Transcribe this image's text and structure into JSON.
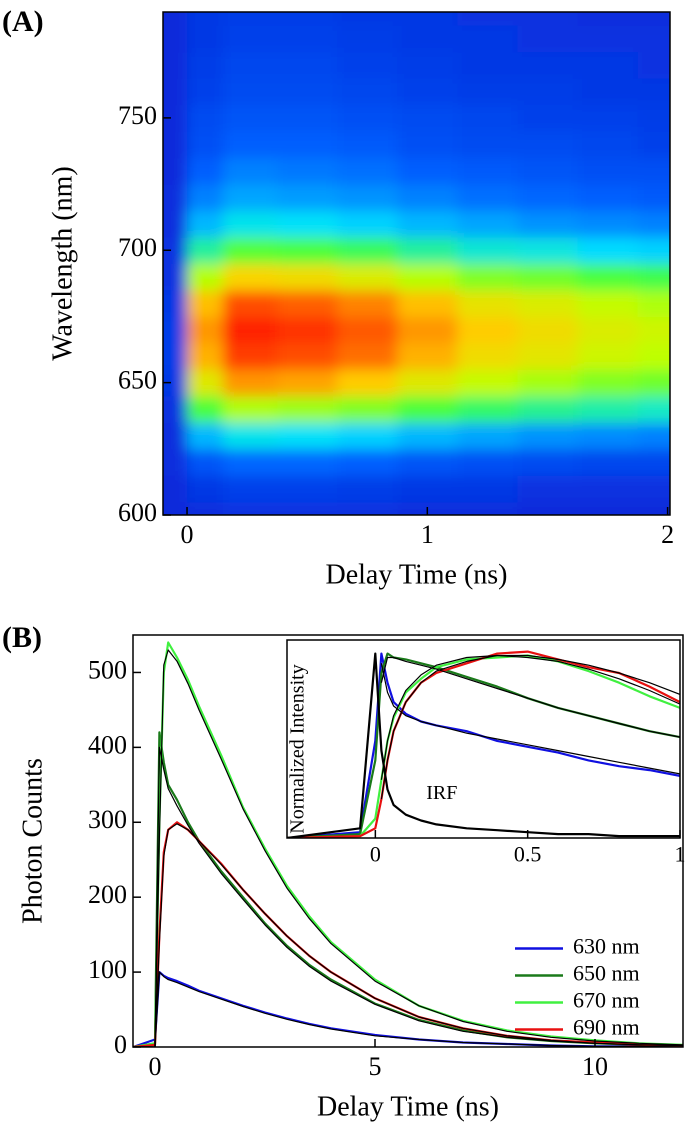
{
  "chart_data": [
    {
      "type": "heatmap",
      "panel_label": "(A)",
      "xlabel": "Delay Time (ns)",
      "ylabel": "Wavelength (nm)",
      "x": [
        -0.05,
        0.05,
        0.25,
        0.5,
        0.75,
        1.0,
        1.25,
        1.5,
        1.75,
        2.0
      ],
      "y": [
        600,
        610,
        620,
        630,
        640,
        650,
        660,
        670,
        680,
        690,
        700,
        710,
        720,
        730,
        740,
        750,
        760,
        770,
        780,
        790
      ],
      "values": [
        [
          0.03,
          0.04,
          0.05,
          0.05,
          0.05,
          0.04,
          0.04,
          0.03,
          0.03,
          0.03
        ],
        [
          0.03,
          0.06,
          0.08,
          0.08,
          0.07,
          0.06,
          0.06,
          0.05,
          0.05,
          0.05
        ],
        [
          0.04,
          0.12,
          0.15,
          0.15,
          0.14,
          0.12,
          0.11,
          0.1,
          0.09,
          0.09
        ],
        [
          0.04,
          0.24,
          0.3,
          0.29,
          0.27,
          0.24,
          0.22,
          0.2,
          0.19,
          0.18
        ],
        [
          0.05,
          0.44,
          0.55,
          0.53,
          0.5,
          0.44,
          0.4,
          0.37,
          0.35,
          0.33
        ],
        [
          0.06,
          0.64,
          0.8,
          0.78,
          0.72,
          0.64,
          0.58,
          0.54,
          0.5,
          0.48
        ],
        [
          0.07,
          0.76,
          0.95,
          0.92,
          0.86,
          0.76,
          0.68,
          0.65,
          0.6,
          0.57
        ],
        [
          0.07,
          0.8,
          1.0,
          0.97,
          0.9,
          0.8,
          0.72,
          0.68,
          0.63,
          0.6
        ],
        [
          0.06,
          0.74,
          0.92,
          0.89,
          0.83,
          0.74,
          0.66,
          0.63,
          0.58,
          0.55
        ],
        [
          0.05,
          0.56,
          0.7,
          0.68,
          0.63,
          0.56,
          0.5,
          0.48,
          0.44,
          0.42
        ],
        [
          0.05,
          0.36,
          0.45,
          0.44,
          0.41,
          0.36,
          0.32,
          0.31,
          0.28,
          0.27
        ],
        [
          0.04,
          0.24,
          0.3,
          0.29,
          0.27,
          0.24,
          0.22,
          0.2,
          0.19,
          0.18
        ],
        [
          0.04,
          0.18,
          0.22,
          0.21,
          0.2,
          0.18,
          0.16,
          0.15,
          0.14,
          0.13
        ],
        [
          0.03,
          0.14,
          0.18,
          0.17,
          0.16,
          0.14,
          0.13,
          0.12,
          0.11,
          0.11
        ],
        [
          0.03,
          0.11,
          0.14,
          0.14,
          0.13,
          0.11,
          0.1,
          0.1,
          0.09,
          0.08
        ],
        [
          0.03,
          0.1,
          0.12,
          0.12,
          0.11,
          0.1,
          0.09,
          0.08,
          0.08,
          0.07
        ],
        [
          0.03,
          0.08,
          0.1,
          0.1,
          0.09,
          0.08,
          0.07,
          0.07,
          0.06,
          0.06
        ],
        [
          0.03,
          0.07,
          0.09,
          0.09,
          0.08,
          0.07,
          0.06,
          0.06,
          0.06,
          0.05
        ],
        [
          0.03,
          0.06,
          0.08,
          0.08,
          0.07,
          0.06,
          0.06,
          0.05,
          0.05,
          0.05
        ],
        [
          0.03,
          0.06,
          0.07,
          0.07,
          0.06,
          0.06,
          0.05,
          0.05,
          0.04,
          0.04
        ]
      ],
      "colorscale": [
        "#0a1ad0",
        "#0060ff",
        "#00e0ff",
        "#40ff40",
        "#c0ff00",
        "#ffd000",
        "#ff7000",
        "#ff2000"
      ],
      "xlim": [
        -0.1,
        2.01
      ],
      "ylim": [
        600,
        790
      ],
      "xticks": [
        0,
        1,
        2
      ],
      "yticks": [
        600,
        650,
        700,
        750
      ]
    },
    {
      "type": "line",
      "panel_label": "(B)",
      "xlabel": "Delay Time (ns)",
      "ylabel": "Photon Counts",
      "x": [
        -0.5,
        0,
        0.1,
        0.2,
        0.3,
        0.5,
        0.75,
        1,
        1.5,
        2,
        2.5,
        3,
        3.5,
        4,
        5,
        6,
        7,
        8,
        9,
        10,
        11,
        12
      ],
      "series": [
        {
          "name": "630 nm",
          "color": "#1010e0",
          "values": [
            0,
            10,
            100,
            95,
            92,
            88,
            82,
            75,
            65,
            55,
            46,
            38,
            31,
            25,
            16,
            10,
            6,
            4,
            2,
            1,
            1,
            0
          ]
        },
        {
          "name": "650 nm",
          "color": "#1a7a1a",
          "values": [
            0,
            5,
            420,
            380,
            350,
            330,
            300,
            275,
            235,
            200,
            165,
            135,
            110,
            90,
            58,
            36,
            22,
            13,
            8,
            5,
            3,
            2
          ]
        },
        {
          "name": "670 nm",
          "color": "#40f040",
          "values": [
            0,
            5,
            300,
            500,
            540,
            520,
            490,
            455,
            390,
            320,
            265,
            215,
            175,
            140,
            90,
            55,
            35,
            22,
            14,
            9,
            5,
            3
          ]
        },
        {
          "name": "690 nm",
          "color": "#e81010",
          "values": [
            0,
            3,
            150,
            260,
            290,
            300,
            290,
            275,
            245,
            210,
            178,
            148,
            122,
            100,
            65,
            40,
            25,
            15,
            9,
            6,
            3,
            2
          ]
        }
      ],
      "fits": [
        {
          "color": "#000000",
          "values": [
            0,
            0,
            100,
            94,
            90,
            86,
            80,
            74,
            64,
            54,
            45,
            37,
            30,
            24,
            15,
            10,
            6,
            4,
            2,
            1,
            1,
            0
          ]
        },
        {
          "color": "#000000",
          "values": [
            0,
            0,
            400,
            370,
            345,
            322,
            296,
            272,
            232,
            197,
            163,
            133,
            108,
            88,
            57,
            35,
            21,
            13,
            8,
            5,
            3,
            2
          ]
        },
        {
          "color": "#000000",
          "values": [
            0,
            0,
            280,
            510,
            530,
            515,
            485,
            450,
            385,
            318,
            262,
            212,
            172,
            138,
            88,
            55,
            34,
            21,
            13,
            8,
            5,
            3
          ]
        },
        {
          "color": "#000000",
          "values": [
            0,
            0,
            140,
            255,
            290,
            298,
            290,
            275,
            244,
            210,
            178,
            148,
            122,
            100,
            65,
            40,
            25,
            15,
            9,
            5,
            3,
            2
          ]
        }
      ],
      "xlim": [
        -0.5,
        12
      ],
      "ylim": [
        0,
        550
      ],
      "xticks": [
        0,
        5,
        10
      ],
      "yticks": [
        0,
        100,
        200,
        300,
        400,
        500
      ],
      "legend": "lower right"
    },
    {
      "type": "line",
      "ylabel": "Normalized Intensity",
      "x": [
        -0.29,
        -0.05,
        0,
        0.02,
        0.04,
        0.06,
        0.1,
        0.15,
        0.2,
        0.3,
        0.4,
        0.5,
        0.6,
        0.7,
        0.8,
        0.9,
        1
      ],
      "series": [
        {
          "color": "#1010e0",
          "values": [
            0,
            0.03,
            0.5,
            0.95,
            0.8,
            0.7,
            0.64,
            0.6,
            0.58,
            0.55,
            0.5,
            0.47,
            0.44,
            0.4,
            0.37,
            0.35,
            0.32
          ]
        },
        {
          "color": "#1a7a1a",
          "values": [
            0,
            0.02,
            0.4,
            0.85,
            0.95,
            0.93,
            0.92,
            0.9,
            0.88,
            0.83,
            0.78,
            0.72,
            0.67,
            0.63,
            0.59,
            0.55,
            0.52
          ]
        },
        {
          "color": "#40f040",
          "values": [
            0,
            0.01,
            0.1,
            0.3,
            0.5,
            0.62,
            0.75,
            0.82,
            0.88,
            0.92,
            0.93,
            0.94,
            0.91,
            0.86,
            0.8,
            0.73,
            0.67
          ]
        },
        {
          "color": "#e81010",
          "values": [
            0,
            0.01,
            0.05,
            0.2,
            0.4,
            0.55,
            0.7,
            0.8,
            0.85,
            0.9,
            0.95,
            0.96,
            0.92,
            0.88,
            0.85,
            0.78,
            0.7
          ]
        },
        {
          "name": "IRF",
          "color": "#000000",
          "values": [
            0,
            0.05,
            0.95,
            0.45,
            0.25,
            0.17,
            0.12,
            0.09,
            0.07,
            0.05,
            0.04,
            0.03,
            0.02,
            0.02,
            0.01,
            0.01,
            0.01
          ]
        }
      ],
      "fits": [
        {
          "color": "#000000",
          "values": [
            null,
            null,
            null,
            0.9,
            0.75,
            0.68,
            0.63,
            0.6,
            0.58,
            0.54,
            0.51,
            0.48,
            0.45,
            0.42,
            0.39,
            0.36,
            0.33
          ]
        },
        {
          "color": "#000000",
          "values": [
            null,
            null,
            null,
            0.8,
            0.93,
            0.93,
            0.91,
            0.89,
            0.87,
            0.82,
            0.77,
            0.72,
            0.67,
            0.63,
            0.59,
            0.55,
            0.52
          ]
        },
        {
          "color": "#000000",
          "values": [
            null,
            null,
            null,
            0.3,
            0.5,
            0.63,
            0.76,
            0.84,
            0.89,
            0.93,
            0.94,
            0.93,
            0.91,
            0.87,
            0.82,
            0.76,
            0.69
          ]
        },
        {
          "color": "#000000",
          "values": [
            null,
            null,
            null,
            0.2,
            0.4,
            0.55,
            0.7,
            0.8,
            0.86,
            0.91,
            0.94,
            0.94,
            0.92,
            0.89,
            0.85,
            0.8,
            0.74
          ]
        }
      ],
      "xlim": [
        -0.29,
        1
      ],
      "ylim": [
        0,
        1.02
      ],
      "xticks": [
        0,
        0.5,
        1
      ]
    }
  ]
}
